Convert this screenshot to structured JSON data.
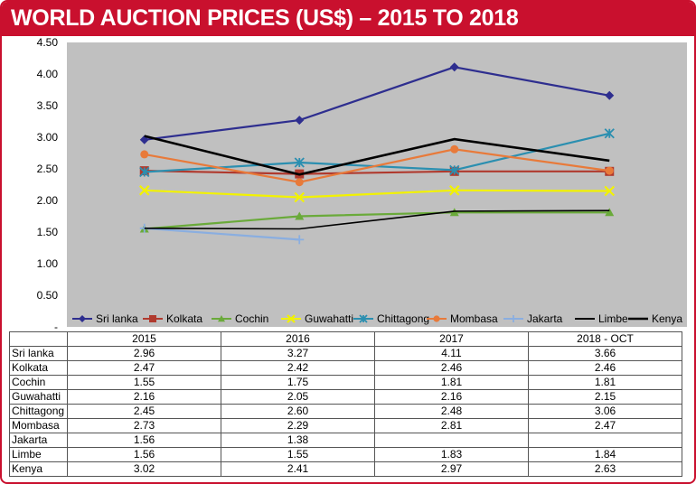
{
  "header": {
    "title": "WORLD AUCTION PRICES (US$) – 2015 TO 2018"
  },
  "colors": {
    "header_bg": "#c9102e",
    "plot_bg": "#c0c0c0"
  },
  "chart_data": {
    "type": "line",
    "title": "WORLD AUCTION PRICES (US$) – 2015 TO 2018",
    "categories": [
      "2015",
      "2016",
      "2017",
      "2018 - OCT"
    ],
    "y_ticks": [
      "-",
      "0.50",
      "1.00",
      "1.50",
      "2.00",
      "2.50",
      "3.00",
      "3.50",
      "4.00",
      "4.50"
    ],
    "ylim": [
      0,
      4.5
    ],
    "grid": false,
    "legend_position": "bottom",
    "series": [
      {
        "name": "Sri lanka",
        "color": "#2e2e8f",
        "marker": "diamond",
        "values": [
          2.96,
          3.27,
          4.11,
          3.66
        ],
        "labels": [
          "2.96",
          "3.27",
          "4.11",
          "3.66"
        ]
      },
      {
        "name": "Kolkata",
        "color": "#b03a2e",
        "marker": "square",
        "values": [
          2.47,
          2.42,
          2.46,
          2.46
        ],
        "labels": [
          "2.47",
          "2.42",
          "2.46",
          "2.46"
        ]
      },
      {
        "name": "Cochin",
        "color": "#6aaa3a",
        "marker": "triangle",
        "values": [
          1.55,
          1.75,
          1.81,
          1.81
        ],
        "labels": [
          "1.55",
          "1.75",
          "1.81",
          "1.81"
        ]
      },
      {
        "name": "Guwahatti",
        "color": "#f2f200",
        "marker": "x",
        "values": [
          2.16,
          2.05,
          2.16,
          2.15
        ],
        "labels": [
          "2.16",
          "2.05",
          "2.16",
          "2.15"
        ]
      },
      {
        "name": "Chittagong",
        "color": "#2b8fb0",
        "marker": "star",
        "values": [
          2.45,
          2.6,
          2.48,
          3.06
        ],
        "labels": [
          "2.45",
          "2.60",
          "2.48",
          "3.06"
        ]
      },
      {
        "name": "Mombasa",
        "color": "#e87a3a",
        "marker": "circle",
        "values": [
          2.73,
          2.29,
          2.81,
          2.47
        ],
        "labels": [
          "2.73",
          "2.29",
          "2.81",
          "2.47"
        ]
      },
      {
        "name": "Jakarta",
        "color": "#8aaee0",
        "marker": "plus",
        "values": [
          1.56,
          1.38,
          null,
          null
        ],
        "labels": [
          "1.56",
          "1.38",
          "",
          ""
        ]
      },
      {
        "name": "Limbe",
        "color": "#000000",
        "marker": "none",
        "values": [
          1.56,
          1.55,
          1.83,
          1.84
        ],
        "labels": [
          "1.56",
          "1.55",
          "1.83",
          "1.84"
        ]
      },
      {
        "name": "Kenya",
        "color": "#000000",
        "marker": "none",
        "values": [
          3.02,
          2.41,
          2.97,
          2.63
        ],
        "labels": [
          "3.02",
          "2.41",
          "2.97",
          "2.63"
        ]
      }
    ]
  }
}
